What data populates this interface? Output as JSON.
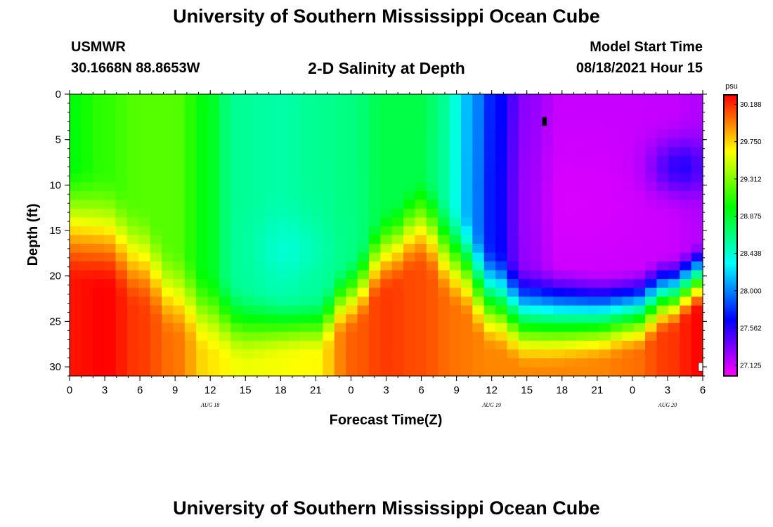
{
  "page": {
    "title_top": "University of Southern Mississippi Ocean Cube",
    "title_bottom": "University of Southern Mississippi Ocean Cube",
    "station": "USMWR",
    "coords": "30.1668N  88.8653W",
    "plot_title": "2-D Salinity at Depth",
    "model_start_label": "Model Start Time",
    "model_start_value": "08/18/2021 Hour 15"
  },
  "chart_data": {
    "type": "heatmap",
    "title": "2-D Salinity at Depth",
    "xlabel": "Forecast Time(Z)",
    "ylabel": "Depth (ft)",
    "x_ticks": [
      {
        "t": 0,
        "label": "0"
      },
      {
        "t": 3,
        "label": "3"
      },
      {
        "t": 6,
        "label": "6"
      },
      {
        "t": 9,
        "label": "9"
      },
      {
        "t": 12,
        "label": "12"
      },
      {
        "t": 15,
        "label": "15"
      },
      {
        "t": 18,
        "label": "18"
      },
      {
        "t": 21,
        "label": "21"
      },
      {
        "t": 24,
        "label": "0"
      },
      {
        "t": 27,
        "label": "3"
      },
      {
        "t": 30,
        "label": "6"
      },
      {
        "t": 33,
        "label": "9"
      },
      {
        "t": 36,
        "label": "12"
      },
      {
        "t": 39,
        "label": "15"
      },
      {
        "t": 42,
        "label": "18"
      },
      {
        "t": 45,
        "label": "21"
      },
      {
        "t": 48,
        "label": "0"
      },
      {
        "t": 51,
        "label": "3"
      },
      {
        "t": 54,
        "label": "6"
      }
    ],
    "date_labels": [
      {
        "t": 12,
        "label": "AUG 18"
      },
      {
        "t": 36,
        "label": "AUG 19"
      },
      {
        "t": 51,
        "label": "AUG 20"
      }
    ],
    "y_ticks": [
      0,
      5,
      10,
      15,
      20,
      25,
      30
    ],
    "xlim": [
      0,
      54
    ],
    "ylim": [
      0,
      31
    ],
    "colorbar": {
      "unit": "psu",
      "min": 27.0,
      "max": 30.3,
      "ticks": [
        "30.188",
        "29.750",
        "29.312",
        "28.875",
        "28.438",
        "28.000",
        "27.562",
        "27.125"
      ]
    },
    "field_model": {
      "description": "Salinity approximated as a surface value that transitions to a bottom value below a time-varying halocline depth",
      "grid": {
        "nx": 55,
        "ny": 32
      },
      "surface_knots": [
        [
          0,
          28.95
        ],
        [
          3,
          29.1
        ],
        [
          6,
          29.2
        ],
        [
          9,
          29.2
        ],
        [
          12,
          28.9
        ],
        [
          14,
          28.6
        ],
        [
          18,
          28.55
        ],
        [
          21,
          28.6
        ],
        [
          24,
          28.65
        ],
        [
          27,
          28.8
        ],
        [
          30,
          28.8
        ],
        [
          32,
          28.6
        ],
        [
          34,
          28.15
        ],
        [
          36,
          27.75
        ],
        [
          39,
          27.3
        ],
        [
          42,
          27.15
        ],
        [
          45,
          27.15
        ],
        [
          48,
          27.15
        ],
        [
          51,
          27.15
        ],
        [
          54,
          27.2
        ]
      ],
      "bottom_knots": [
        [
          0,
          30.25
        ],
        [
          3,
          30.3
        ],
        [
          6,
          30.15
        ],
        [
          9,
          30.0
        ],
        [
          12,
          29.7
        ],
        [
          15,
          29.6
        ],
        [
          18,
          29.62
        ],
        [
          21,
          29.65
        ],
        [
          24,
          30.05
        ],
        [
          27,
          30.15
        ],
        [
          30,
          30.1
        ],
        [
          33,
          30.0
        ],
        [
          36,
          29.95
        ],
        [
          39,
          29.95
        ],
        [
          42,
          29.95
        ],
        [
          45,
          29.95
        ],
        [
          48,
          30.0
        ],
        [
          51,
          30.15
        ],
        [
          54,
          30.3
        ]
      ],
      "halocline_knots": [
        [
          0,
          14
        ],
        [
          3,
          15
        ],
        [
          6,
          18
        ],
        [
          9,
          22
        ],
        [
          12,
          24
        ],
        [
          15,
          25.5
        ],
        [
          18,
          25.5
        ],
        [
          21,
          25.5
        ],
        [
          24,
          22
        ],
        [
          27,
          17
        ],
        [
          30,
          14
        ],
        [
          33,
          18
        ],
        [
          36,
          22.5
        ],
        [
          39,
          24.5
        ],
        [
          42,
          24.5
        ],
        [
          45,
          24.5
        ],
        [
          48,
          24
        ],
        [
          51,
          22
        ],
        [
          54,
          20
        ]
      ],
      "mixing_width_ft": [
        [
          0,
          7
        ],
        [
          12,
          5
        ],
        [
          20,
          3.5
        ],
        [
          27,
          5
        ],
        [
          33,
          6
        ],
        [
          40,
          6
        ],
        [
          48,
          5
        ],
        [
          54,
          4
        ]
      ],
      "upper_anomalies": [
        {
          "t": 19,
          "d": 17,
          "st": 3,
          "sd": 3.5,
          "a": -0.12
        },
        {
          "t": 42,
          "d": 12,
          "st": 10,
          "sd": 8,
          "a": -0.05
        },
        {
          "t": 52,
          "d": 8,
          "st": 2.5,
          "sd": 3,
          "a": 0.4
        }
      ]
    },
    "markers": [
      {
        "t": 40.5,
        "d": 3,
        "color": "#000000"
      },
      {
        "t": 54,
        "d": 30,
        "color": "#ffffff"
      }
    ]
  }
}
